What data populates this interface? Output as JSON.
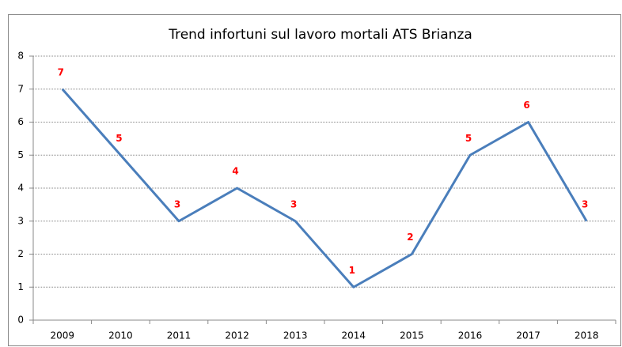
{
  "chart_data": {
    "type": "line",
    "title": "Trend infortuni sul lavoro mortali ATS Brianza",
    "categories": [
      "2009",
      "2010",
      "2011",
      "2012",
      "2013",
      "2014",
      "2015",
      "2016",
      "2017",
      "2018"
    ],
    "values": [
      7,
      5,
      3,
      4,
      3,
      1,
      2,
      5,
      6,
      3
    ],
    "color": "#4a7ebb",
    "label_color": "#ff0000",
    "ylim": [
      0,
      8
    ],
    "yticks": [
      0,
      1,
      2,
      3,
      4,
      5,
      6,
      7,
      8
    ],
    "grid": true
  }
}
